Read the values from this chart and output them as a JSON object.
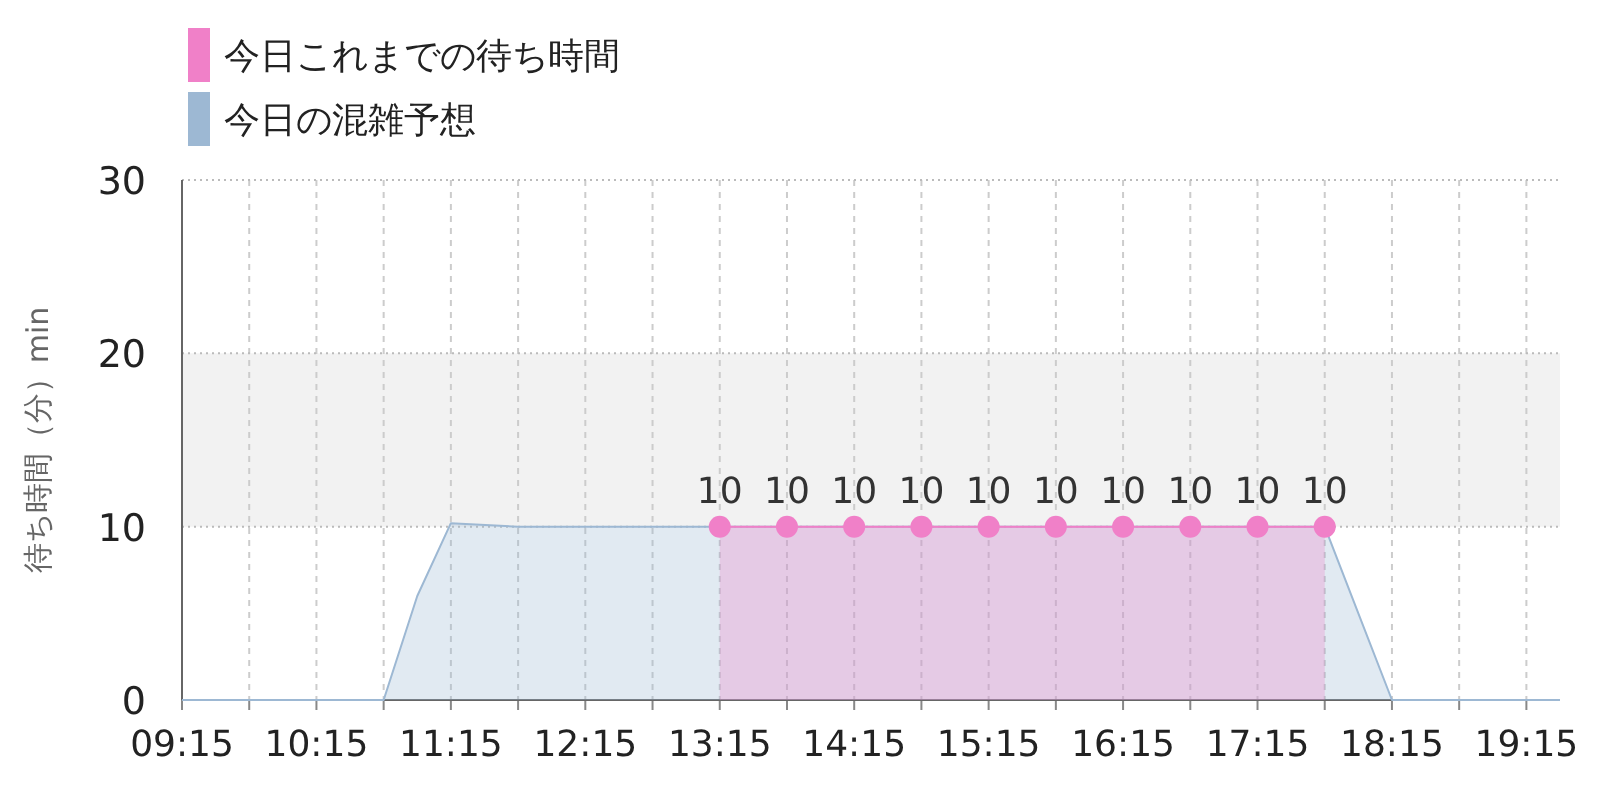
{
  "chart_data": {
    "type": "area",
    "ylabel": "待ち時間（分）min",
    "series": [
      {
        "name": "今日の混雑予想",
        "color": "#9db8d3",
        "x": [
          9.25,
          9.75,
          10.25,
          10.75,
          11.0,
          11.25,
          11.75,
          12.25,
          12.75,
          13.25,
          13.75,
          14.25,
          14.75,
          15.25,
          15.75,
          16.25,
          16.75,
          17.25,
          17.75,
          18.0,
          18.25,
          18.75,
          19.25,
          19.5
        ],
        "values": [
          0,
          0,
          0,
          0,
          6,
          10.2,
          10,
          10,
          10,
          10,
          10,
          10,
          10,
          10,
          10,
          10,
          10,
          10,
          10,
          5,
          0,
          0,
          0,
          0
        ]
      },
      {
        "name": "今日これまでの待ち時間",
        "color": "#f080c8",
        "marker": "circle",
        "value_labels": [
          "10",
          "10",
          "10",
          "10",
          "10",
          "10",
          "10",
          "10",
          "10",
          "10"
        ],
        "x": [
          13.25,
          13.75,
          14.25,
          14.75,
          15.25,
          15.75,
          16.25,
          16.75,
          17.25,
          17.75
        ],
        "values": [
          10,
          10,
          10,
          10,
          10,
          10,
          10,
          10,
          10,
          10
        ]
      }
    ],
    "legend": "top left",
    "grid": true,
    "bands": [
      {
        "axis": "y",
        "from": 10,
        "to": 20,
        "color": "#f2f2f2"
      }
    ],
    "xlim": [
      9.25,
      19.5
    ],
    "xticks": [
      {
        "value": 9.25,
        "label": "09:15"
      },
      {
        "value": 9.75,
        "label": null
      },
      {
        "value": 10.25,
        "label": "10:15"
      },
      {
        "value": 10.75,
        "label": null
      },
      {
        "value": 11.25,
        "label": "11:15"
      },
      {
        "value": 11.75,
        "label": null
      },
      {
        "value": 12.25,
        "label": "12:15"
      },
      {
        "value": 12.75,
        "label": null
      },
      {
        "value": 13.25,
        "label": "13:15"
      },
      {
        "value": 13.75,
        "label": null
      },
      {
        "value": 14.25,
        "label": "14:15"
      },
      {
        "value": 14.75,
        "label": null
      },
      {
        "value": 15.25,
        "label": "15:15"
      },
      {
        "value": 15.75,
        "label": null
      },
      {
        "value": 16.25,
        "label": "16:15"
      },
      {
        "value": 16.75,
        "label": null
      },
      {
        "value": 17.25,
        "label": "17:15"
      },
      {
        "value": 17.75,
        "label": null
      },
      {
        "value": 18.25,
        "label": "18:15"
      },
      {
        "value": 18.75,
        "label": null
      },
      {
        "value": 19.25,
        "label": "19:15"
      }
    ],
    "ylim": [
      0,
      30
    ],
    "yticks": [
      0,
      10,
      20,
      30
    ]
  }
}
